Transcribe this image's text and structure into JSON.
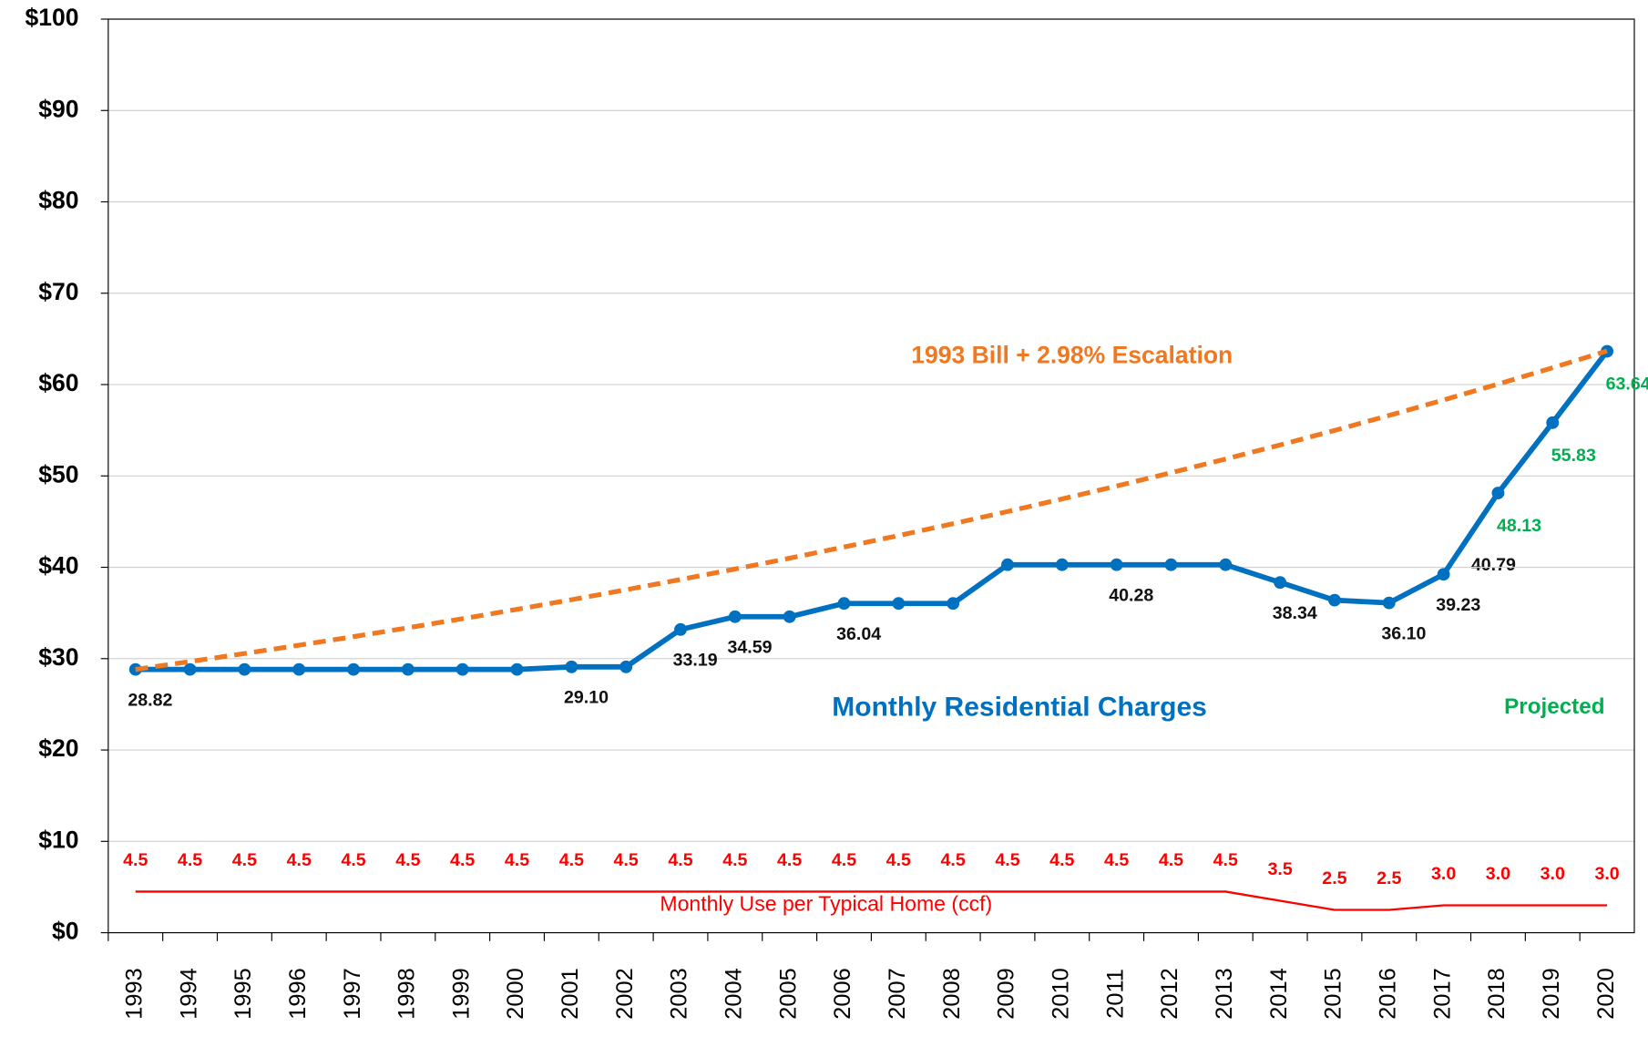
{
  "chart_data": {
    "type": "line",
    "categories": [
      "1993",
      "1994",
      "1995",
      "1996",
      "1997",
      "1998",
      "1999",
      "2000",
      "2001",
      "2002",
      "2003",
      "2004",
      "2005",
      "2006",
      "2007",
      "2008",
      "2009",
      "2010",
      "2011",
      "2012",
      "2013",
      "2014",
      "2015",
      "2016",
      "2017",
      "2018",
      "2019",
      "2020"
    ],
    "ylim": [
      0,
      100
    ],
    "yticks": [
      {
        "value": 0,
        "label": "$0"
      },
      {
        "value": 10,
        "label": "$10"
      },
      {
        "value": 20,
        "label": "$20"
      },
      {
        "value": 30,
        "label": "$30"
      },
      {
        "value": 40,
        "label": "$40"
      },
      {
        "value": 50,
        "label": "$50"
      },
      {
        "value": 60,
        "label": "$60"
      },
      {
        "value": 70,
        "label": "$70"
      },
      {
        "value": 80,
        "label": "$80"
      },
      {
        "value": 90,
        "label": "$90"
      },
      {
        "value": 100,
        "label": "$100"
      }
    ],
    "grid": true,
    "series": [
      {
        "name": "Monthly Residential Charges",
        "color": "#0070c0",
        "values": [
          28.82,
          28.82,
          28.82,
          28.82,
          28.82,
          28.82,
          28.82,
          28.82,
          29.1,
          29.1,
          33.19,
          34.59,
          34.59,
          36.04,
          36.04,
          36.04,
          40.28,
          40.28,
          40.28,
          40.28,
          40.28,
          38.34,
          36.4,
          36.1,
          39.23,
          48.13,
          55.83,
          63.64
        ],
        "value_labels": [
          "28.82",
          null,
          null,
          null,
          null,
          null,
          null,
          null,
          "29.10",
          null,
          "33.19",
          "34.59",
          null,
          "36.04",
          null,
          null,
          null,
          null,
          "40.28",
          null,
          null,
          "38.34",
          null,
          "36.10",
          "39.23",
          "48.13",
          "55.83",
          "63.64"
        ]
      },
      {
        "name": "1993 Bill + 2.98% Escalation",
        "color": "#f07820",
        "dashed": true,
        "values": [
          28.82,
          29.68,
          30.56,
          31.47,
          32.41,
          33.38,
          34.37,
          35.4,
          36.45,
          37.54,
          38.66,
          39.81,
          40.99,
          42.22,
          43.47,
          44.77,
          46.1,
          47.48,
          48.89,
          50.35,
          51.85,
          53.39,
          54.98,
          56.62,
          58.31,
          60.05,
          61.84,
          63.68
        ]
      },
      {
        "name": "Monthly Use per Typical Home (ccf)",
        "color": "#ff0000",
        "values": [
          4.5,
          4.5,
          4.5,
          4.5,
          4.5,
          4.5,
          4.5,
          4.5,
          4.5,
          4.5,
          4.5,
          4.5,
          4.5,
          4.5,
          4.5,
          4.5,
          4.5,
          4.5,
          4.5,
          4.5,
          4.5,
          3.5,
          2.5,
          2.5,
          3.0,
          3.0,
          3.0,
          3.0
        ],
        "value_labels": [
          "4.5",
          "4.5",
          "4.5",
          "4.5",
          "4.5",
          "4.5",
          "4.5",
          "4.5",
          "4.5",
          "4.5",
          "4.5",
          "4.5",
          "4.5",
          "4.5",
          "4.5",
          "4.5",
          "4.5",
          "4.5",
          "4.5",
          "4.5",
          "4.5",
          "3.5",
          "2.5",
          "2.5",
          "3.0",
          "3.0",
          "3.0",
          "3.0"
        ]
      }
    ],
    "annotations": [
      "Projected",
      "40.79"
    ]
  }
}
